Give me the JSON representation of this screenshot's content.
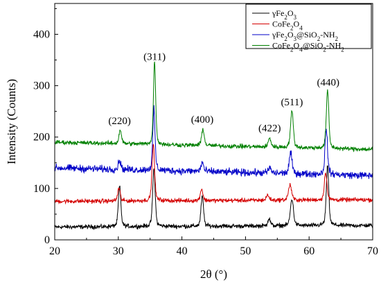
{
  "chart_data": {
    "type": "line",
    "xlabel": "2θ (°)",
    "ylabel": "Intensity (Counts)",
    "xlim": [
      20,
      70
    ],
    "ylim": [
      0,
      460
    ],
    "x_ticks": [
      20,
      30,
      40,
      50,
      60,
      70
    ],
    "y_ticks": [
      0,
      100,
      200,
      300,
      400
    ],
    "legend_position": "top-right",
    "series": [
      {
        "name": "γFe2O3",
        "legend_main": "γFe",
        "legend_parts": [
          {
            "t": "γFe",
            "sub": false
          },
          {
            "t": "2",
            "sub": true
          },
          {
            "t": "O",
            "sub": false
          },
          {
            "t": "3",
            "sub": true
          }
        ],
        "color": "#000000",
        "baseline": 25,
        "baseline_end": 28,
        "noise": 3,
        "peaks": [
          {
            "x": 30.2,
            "h": 78,
            "w": 0.45
          },
          {
            "x": 35.6,
            "h": 112,
            "w": 0.45
          },
          {
            "x": 43.2,
            "h": 58,
            "w": 0.45
          },
          {
            "x": 53.7,
            "h": 14,
            "w": 0.5
          },
          {
            "x": 57.3,
            "h": 52,
            "w": 0.55
          },
          {
            "x": 62.9,
            "h": 115,
            "w": 0.45
          }
        ]
      },
      {
        "name": "CoFe2O4",
        "legend_main": "CoFe",
        "legend_parts": [
          {
            "t": "CoFe",
            "sub": false
          },
          {
            "t": "2",
            "sub": true
          },
          {
            "t": "O",
            "sub": false
          },
          {
            "t": "4",
            "sub": true
          }
        ],
        "color": "#d40000",
        "baseline": 75,
        "baseline_end": 78,
        "noise": 3,
        "peaks": [
          {
            "x": 30.1,
            "h": 25,
            "w": 0.45
          },
          {
            "x": 35.5,
            "h": 110,
            "w": 0.45
          },
          {
            "x": 43.1,
            "h": 23,
            "w": 0.45
          },
          {
            "x": 53.5,
            "h": 10,
            "w": 0.5
          },
          {
            "x": 57.0,
            "h": 30,
            "w": 0.55
          },
          {
            "x": 62.6,
            "h": 55,
            "w": 0.45
          }
        ]
      },
      {
        "name": "γFe2O3@SiO2-NH2",
        "legend_main": "γFe",
        "legend_parts": [
          {
            "t": "γFe",
            "sub": false
          },
          {
            "t": "2",
            "sub": true
          },
          {
            "t": "O",
            "sub": false
          },
          {
            "t": "3",
            "sub": true
          },
          {
            "t": "@SiO",
            "sub": false
          },
          {
            "t": "2",
            "sub": true
          },
          {
            "t": "-NH",
            "sub": false
          },
          {
            "t": "2",
            "sub": true
          }
        ],
        "color": "#0000c8",
        "baseline": 140,
        "baseline_end": 125,
        "noise": 5,
        "peaks": [
          {
            "x": 30.2,
            "h": 18,
            "w": 0.45
          },
          {
            "x": 35.6,
            "h": 118,
            "w": 0.4
          },
          {
            "x": 43.2,
            "h": 18,
            "w": 0.45
          },
          {
            "x": 53.8,
            "h": 10,
            "w": 0.5
          },
          {
            "x": 57.1,
            "h": 40,
            "w": 0.5
          },
          {
            "x": 62.7,
            "h": 88,
            "w": 0.45
          }
        ]
      },
      {
        "name": "CoFe2O4@SiO2-NH2",
        "legend_main": "CoFe",
        "legend_parts": [
          {
            "t": "CoFe",
            "sub": false
          },
          {
            "t": "2",
            "sub": true
          },
          {
            "t": "O",
            "sub": false
          },
          {
            "t": "4",
            "sub": true
          },
          {
            "t": "@SiO",
            "sub": false
          },
          {
            "t": "2",
            "sub": true
          },
          {
            "t": "-NH",
            "sub": false
          },
          {
            "t": "2",
            "sub": true
          }
        ],
        "color": "#008000",
        "baseline": 190,
        "baseline_end": 176,
        "noise": 3,
        "peaks": [
          {
            "x": 30.3,
            "h": 27,
            "w": 0.45
          },
          {
            "x": 35.7,
            "h": 160,
            "w": 0.4
          },
          {
            "x": 43.3,
            "h": 33,
            "w": 0.45
          },
          {
            "x": 53.8,
            "h": 17,
            "w": 0.5
          },
          {
            "x": 57.3,
            "h": 70,
            "w": 0.5
          },
          {
            "x": 62.9,
            "h": 112,
            "w": 0.45
          }
        ]
      }
    ],
    "annotations": [
      {
        "text": "(220)",
        "x": 30.2,
        "y": 225
      },
      {
        "text": "(311)",
        "x": 35.7,
        "y": 350
      },
      {
        "text": "(400)",
        "x": 43.2,
        "y": 228
      },
      {
        "text": "(422)",
        "x": 53.8,
        "y": 211
      },
      {
        "text": "(511)",
        "x": 57.3,
        "y": 262
      },
      {
        "text": "(440)",
        "x": 63.0,
        "y": 300
      }
    ]
  }
}
